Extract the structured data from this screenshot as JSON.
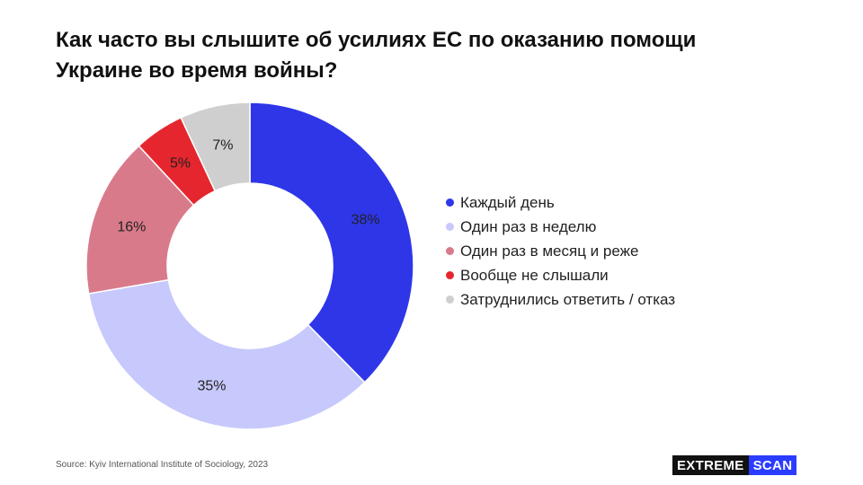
{
  "header": {
    "title_line1": "Как часто вы слышите об усилиях ЕС по оказанию помощи",
    "title_line2": "Украине во время войны?"
  },
  "chart_data": {
    "type": "pie",
    "title": "Как часто вы слышите об усилиях ЕС по оказанию помощи Украине во время войны?",
    "donut": true,
    "legend_placement": "right",
    "slices": [
      {
        "label": "Каждый день",
        "value": 38,
        "display": "38%",
        "color": "#2e36e8"
      },
      {
        "label": "Один раз в неделю",
        "value": 35,
        "display": "35%",
        "color": "#c7c8fb"
      },
      {
        "label": "Один раз в месяц и реже",
        "value": 16,
        "display": "16%",
        "color": "#d97a8b"
      },
      {
        "label": "Вообще не слышали",
        "value": 5,
        "display": "5%",
        "color": "#e6262e"
      },
      {
        "label": "Затруднились ответить / отказ",
        "value": 7,
        "display": "7%",
        "color": "#cfcfcf"
      }
    ]
  },
  "footer": {
    "source": "Source: Kyiv International Institute of Sociology, 2023",
    "brand_part1": "EXTREME",
    "brand_part2": "SCAN"
  }
}
